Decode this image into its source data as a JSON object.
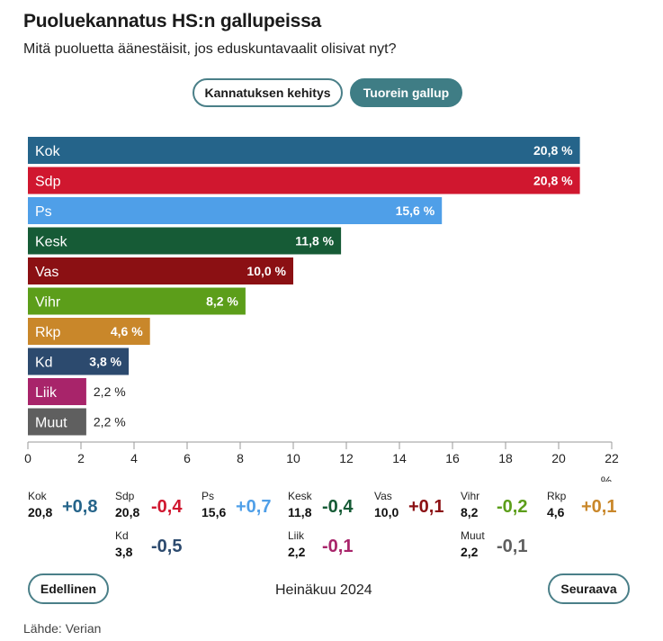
{
  "header": {
    "title": "Puoluekannatus HS:n gallupeissa",
    "subtitle": "Mitä puoluetta äänestäisit, jos eduskuntavaalit olisivat nyt?"
  },
  "tabs": [
    {
      "label": "Kannatuksen kehitys",
      "active": false
    },
    {
      "label": "Tuorein gallup",
      "active": true
    }
  ],
  "chart_data": {
    "type": "bar",
    "orientation": "horizontal",
    "categories": [
      "Kok",
      "Sdp",
      "Ps",
      "Kesk",
      "Vas",
      "Vihr",
      "Rkp",
      "Kd",
      "Liik",
      "Muut"
    ],
    "values": [
      20.8,
      20.8,
      15.6,
      11.8,
      10.0,
      8.2,
      4.6,
      3.8,
      2.2,
      2.2
    ],
    "value_labels": [
      "20,8 %",
      "20,8 %",
      "15,6 %",
      "11,8 %",
      "10,0 %",
      "8,2 %",
      "4,6 %",
      "3,8 %",
      "2,2 %",
      "2,2 %"
    ],
    "colors": [
      "#25648a",
      "#d0172f",
      "#4f9fe8",
      "#165b36",
      "#8b1013",
      "#5c9e1a",
      "#c9872a",
      "#2c4a6e",
      "#a8246a",
      "#5f5f5f"
    ],
    "xlim": [
      0,
      22
    ],
    "xticks": [
      0,
      2,
      4,
      6,
      8,
      10,
      12,
      14,
      16,
      18,
      20,
      22
    ],
    "xticklabels": [
      "0",
      "2",
      "4",
      "6",
      "8",
      "10",
      "12",
      "14",
      "16",
      "18",
      "20",
      "22"
    ],
    "xlabel": "%",
    "grid": false
  },
  "changes": [
    {
      "party": "Kok",
      "value": "20,8",
      "diff": "+0,8",
      "color": "#25648a"
    },
    {
      "party": "Sdp",
      "value": "20,8",
      "diff": "-0,4",
      "color": "#d0172f"
    },
    {
      "party": "Ps",
      "value": "15,6",
      "diff": "+0,7",
      "color": "#4f9fe8"
    },
    {
      "party": "Kesk",
      "value": "11,8",
      "diff": "-0,4",
      "color": "#165b36"
    },
    {
      "party": "Vas",
      "value": "10,0",
      "diff": "+0,1",
      "color": "#8b1013"
    },
    {
      "party": "Vihr",
      "value": "8,2",
      "diff": "-0,2",
      "color": "#5c9e1a"
    },
    {
      "party": "Rkp",
      "value": "4,6",
      "diff": "+0,1",
      "color": "#c9872a"
    },
    {
      "party": "Kd",
      "value": "3,8",
      "diff": "-0,5",
      "color": "#2c4a6e"
    },
    {
      "party": "Liik",
      "value": "2,2",
      "diff": "-0,1",
      "color": "#a8246a"
    },
    {
      "party": "Muut",
      "value": "2,2",
      "diff": "-0,1",
      "color": "#5f5f5f"
    }
  ],
  "nav": {
    "prev_label": "Edellinen",
    "period": "Heinäkuu 2024",
    "next_label": "Seuraava"
  },
  "footer": {
    "source": "Lähde: Verian"
  }
}
